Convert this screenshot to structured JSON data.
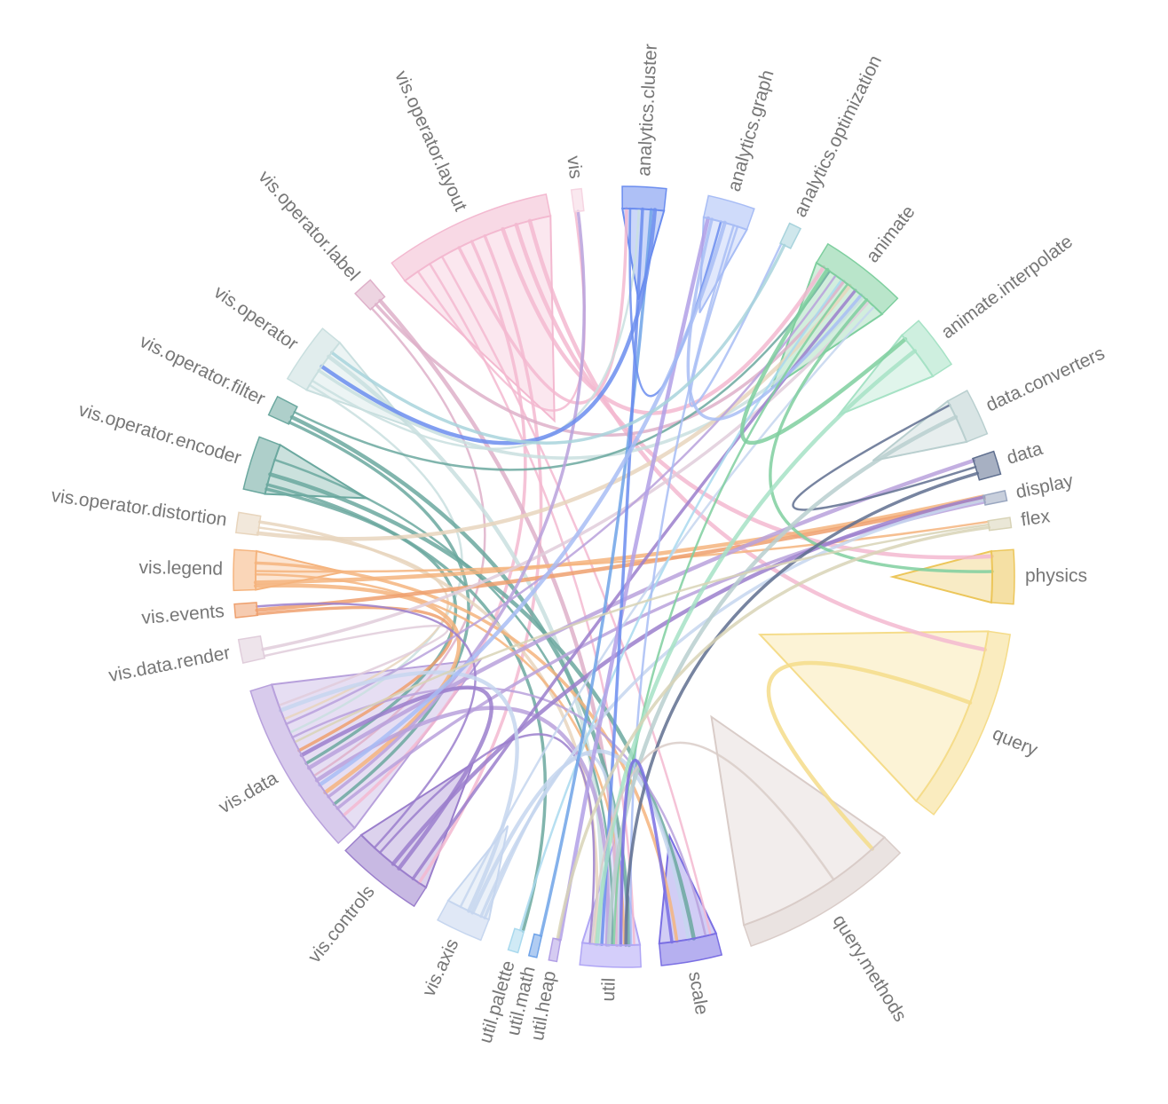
{
  "chart_data": {
    "type": "chord",
    "title": "",
    "groups": [
      {
        "name": "analytics.cluster",
        "color": "#6b8def",
        "angle_deg": 3,
        "span_deg": 6.5
      },
      {
        "name": "analytics.graph",
        "color": "#a8bdf5",
        "angle_deg": 16,
        "span_deg": 7
      },
      {
        "name": "analytics.optimization",
        "color": "#a8d3dc",
        "angle_deg": 26,
        "span_deg": 1.8
      },
      {
        "name": "animate",
        "color": "#7fcf9f",
        "angle_deg": 38,
        "span_deg": 13
      },
      {
        "name": "animate.interpolate",
        "color": "#a6e2c5",
        "angle_deg": 53,
        "span_deg": 8
      },
      {
        "name": "data.converters",
        "color": "#b9cfcf",
        "angle_deg": 65,
        "span_deg": 7
      },
      {
        "name": "data",
        "color": "#5f6f8f",
        "angle_deg": 73,
        "span_deg": 3.5
      },
      {
        "name": "display",
        "color": "#9aa7c0",
        "angle_deg": 78,
        "span_deg": 1.5
      },
      {
        "name": "flex",
        "color": "#d8d3b6",
        "angle_deg": 82,
        "span_deg": 1.5
      },
      {
        "name": "physics",
        "color": "#ecc65a",
        "angle_deg": 90,
        "span_deg": 8
      },
      {
        "name": "query",
        "color": "#f5dc8a",
        "angle_deg": 113,
        "span_deg": 29
      },
      {
        "name": "query.methods",
        "color": "#d9ccc8",
        "angle_deg": 148,
        "span_deg": 26
      },
      {
        "name": "scale",
        "color": "#7a6fe3",
        "angle_deg": 170,
        "span_deg": 9
      },
      {
        "name": "util",
        "color": "#b0a6f5",
        "angle_deg": 182,
        "span_deg": 9
      },
      {
        "name": "util.heap",
        "color": "#b2a0e6",
        "angle_deg": 190.5,
        "span_deg": 1.2
      },
      {
        "name": "util.math",
        "color": "#6fa3e8",
        "angle_deg": 193.5,
        "span_deg": 1.2
      },
      {
        "name": "util.palette",
        "color": "#a9d9ee",
        "angle_deg": 196.5,
        "span_deg": 1.5
      },
      {
        "name": "vis.axis",
        "color": "#c6d6ef",
        "angle_deg": 205,
        "span_deg": 7
      },
      {
        "name": "vis.controls",
        "color": "#9b7fcc",
        "angle_deg": 219,
        "span_deg": 13
      },
      {
        "name": "vis.data",
        "color": "#b8a1dc",
        "angle_deg": 240,
        "span_deg": 26
      },
      {
        "name": "vis.data.render",
        "color": "#e0cddb",
        "angle_deg": 259,
        "span_deg": 3.5
      },
      {
        "name": "vis.events",
        "color": "#eea06f",
        "angle_deg": 265,
        "span_deg": 2
      },
      {
        "name": "vis.legend",
        "color": "#f5b47e",
        "angle_deg": 271,
        "span_deg": 6
      },
      {
        "name": "vis.operator.distortion",
        "color": "#e8d5bd",
        "angle_deg": 278,
        "span_deg": 3
      },
      {
        "name": "vis.operator.encoder",
        "color": "#6ba89f",
        "angle_deg": 287,
        "span_deg": 8
      },
      {
        "name": "vis.operator.filter",
        "color": "#6ba89f",
        "angle_deg": 296,
        "span_deg": 3
      },
      {
        "name": "vis.operator",
        "color": "#c9dfdf",
        "angle_deg": 305,
        "span_deg": 9
      },
      {
        "name": "vis.operator.label",
        "color": "#deb0c9",
        "angle_deg": 318,
        "span_deg": 3
      },
      {
        "name": "vis.operator.layout",
        "color": "#f3b9d0",
        "angle_deg": 336,
        "span_deg": 25
      },
      {
        "name": "vis",
        "color": "#f6d5e2",
        "angle_deg": 353,
        "span_deg": 1.5
      }
    ],
    "links": [
      [
        "vis.operator.layout",
        "vis"
      ],
      [
        "vis.operator.layout",
        "analytics.cluster"
      ],
      [
        "vis.operator.layout",
        "animate"
      ],
      [
        "vis.operator.layout",
        "util"
      ],
      [
        "vis.operator.layout",
        "vis.data"
      ],
      [
        "vis.operator.layout",
        "physics"
      ],
      [
        "vis.operator.layout",
        "scale"
      ],
      [
        "vis.operator.layout",
        "vis.controls"
      ],
      [
        "vis.operator.layout",
        "query"
      ],
      [
        "vis.operator.label",
        "vis.data"
      ],
      [
        "vis.operator.label",
        "animate"
      ],
      [
        "vis.operator.label",
        "util"
      ],
      [
        "vis.operator",
        "vis.data"
      ],
      [
        "vis.operator",
        "animate"
      ],
      [
        "vis.operator",
        "util"
      ],
      [
        "vis.operator",
        "analytics.cluster"
      ],
      [
        "vis.operator.filter",
        "vis.data"
      ],
      [
        "vis.operator.filter",
        "util"
      ],
      [
        "vis.operator.filter",
        "animate"
      ],
      [
        "vis.operator.encoder",
        "vis.data"
      ],
      [
        "vis.operator.encoder",
        "scale"
      ],
      [
        "vis.operator.encoder",
        "util"
      ],
      [
        "vis.operator.encoder",
        "util.palette"
      ],
      [
        "vis.operator.distortion",
        "animate"
      ],
      [
        "vis.operator.distortion",
        "vis.data"
      ],
      [
        "vis.operator.distortion",
        "util"
      ],
      [
        "vis.legend",
        "vis.data"
      ],
      [
        "vis.legend",
        "util"
      ],
      [
        "vis.legend",
        "scale"
      ],
      [
        "vis.legend",
        "display"
      ],
      [
        "vis.legend",
        "flex"
      ],
      [
        "vis.events",
        "vis.data"
      ],
      [
        "vis.events",
        "display"
      ],
      [
        "vis.data.render",
        "vis.data"
      ],
      [
        "vis.data.render",
        "animate"
      ],
      [
        "vis.data",
        "util"
      ],
      [
        "vis.data",
        "scale"
      ],
      [
        "vis.data",
        "display"
      ],
      [
        "vis.data",
        "data"
      ],
      [
        "vis.data",
        "animate"
      ],
      [
        "vis.data",
        "vis"
      ],
      [
        "vis.controls",
        "vis.data"
      ],
      [
        "vis.controls",
        "util"
      ],
      [
        "vis.controls",
        "animate"
      ],
      [
        "vis.controls",
        "display"
      ],
      [
        "vis.controls",
        "vis.events"
      ],
      [
        "vis.axis",
        "util"
      ],
      [
        "vis.axis",
        "scale"
      ],
      [
        "vis.axis",
        "animate"
      ],
      [
        "vis.axis",
        "display"
      ],
      [
        "vis.axis",
        "vis.data"
      ],
      [
        "util.palette",
        "animate"
      ],
      [
        "util.math",
        "analytics.cluster"
      ],
      [
        "util.heap",
        "analytics.graph"
      ],
      [
        "analytics.cluster",
        "analytics.graph"
      ],
      [
        "analytics.cluster",
        "util"
      ],
      [
        "analytics.cluster",
        "vis.operator"
      ],
      [
        "analytics.graph",
        "util"
      ],
      [
        "analytics.graph",
        "animate"
      ],
      [
        "analytics.graph",
        "vis.data"
      ],
      [
        "analytics.graph",
        "analytics.optimization"
      ],
      [
        "analytics.optimization",
        "vis.operator"
      ],
      [
        "animate",
        "animate.interpolate"
      ],
      [
        "animate",
        "util"
      ],
      [
        "animate",
        "physics"
      ],
      [
        "animate.interpolate",
        "util"
      ],
      [
        "data",
        "data.converters"
      ],
      [
        "data",
        "util"
      ],
      [
        "data.converters",
        "util"
      ],
      [
        "flex",
        "vis.data"
      ],
      [
        "flex",
        "util.heap"
      ],
      [
        "query",
        "query.methods"
      ],
      [
        "query.methods",
        "util"
      ],
      [
        "scale",
        "util"
      ]
    ]
  }
}
